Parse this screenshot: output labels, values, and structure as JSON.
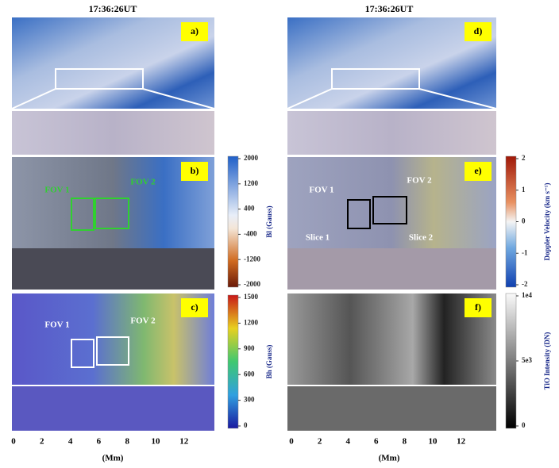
{
  "titles": [
    "17:36:26UT",
    "17:36:26UT"
  ],
  "panels": [
    {
      "label": "a)",
      "annotations": []
    },
    {
      "label": "b)",
      "annotations": [
        "FOV 1",
        "FOV 2"
      ]
    },
    {
      "label": "c)",
      "annotations": [
        "FOV 1",
        "FOV 2"
      ]
    },
    {
      "label": "d)",
      "annotations": []
    },
    {
      "label": "e)",
      "annotations": [
        "FOV 1",
        "FOV 2",
        "Slice 1",
        "Slice 2"
      ]
    },
    {
      "label": "f)",
      "annotations": []
    }
  ],
  "colorbars": [
    {
      "label": "Bl (Gauss)",
      "ticks": [
        "2000",
        "1200",
        "400",
        "-400",
        "-1200",
        "-2000"
      ]
    },
    {
      "label": "Bh (Gauss)",
      "ticks": [
        "1500",
        "1200",
        "900",
        "600",
        "300",
        "0"
      ]
    },
    {
      "label": "Doppler Velocity (km s⁻¹)",
      "ticks": [
        "2",
        "1",
        "0",
        "-1",
        "-2"
      ]
    },
    {
      "label": "TiO Intensity (DN)",
      "ticks": [
        "1e4",
        "5e3",
        "0"
      ]
    }
  ],
  "x_axes": [
    {
      "ticks": [
        "0",
        "2",
        "4",
        "6",
        "8",
        "10",
        "12"
      ],
      "label": "(Mm)"
    },
    {
      "ticks": [
        "0",
        "2",
        "4",
        "6",
        "8",
        "10",
        "12"
      ],
      "label": "(Mm)"
    }
  ]
}
